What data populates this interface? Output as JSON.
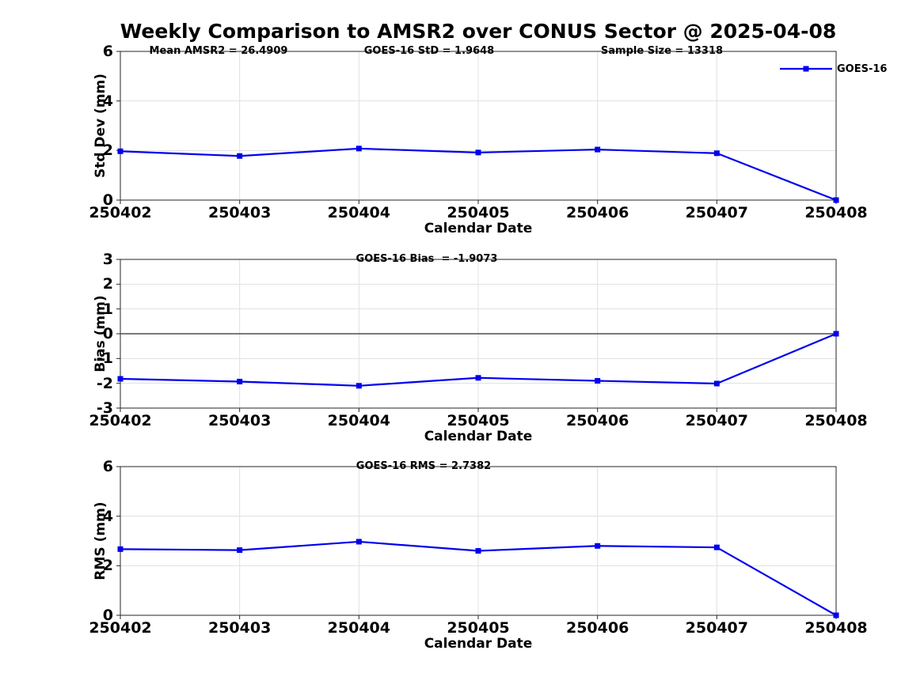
{
  "figure": {
    "title": "Weekly Comparison to AMSR2 over CONUS Sector @ 2025-04-08"
  },
  "legend": {
    "label": "GOES-16"
  },
  "colors": {
    "line": "#0000EE",
    "marker": "#0000EE",
    "axis": "#262626",
    "grid": "#E0E0E0",
    "zero_line": "#4D4D4D",
    "text": "#000000",
    "background": "#FFFFFF"
  },
  "chart_data": [
    {
      "type": "line",
      "name": "std-dev",
      "title": "",
      "categories": [
        "250402",
        "250403",
        "250404",
        "250405",
        "250406",
        "250407",
        "250408"
      ],
      "series": [
        {
          "name": "GOES-16",
          "values": [
            1.97,
            1.78,
            2.08,
            1.92,
            2.04,
            1.89,
            0.0
          ]
        }
      ],
      "ylabel": "Std Dev (mm)",
      "xlabel": "Calendar Date",
      "ylim": [
        0,
        6
      ],
      "yticks": [
        0,
        2,
        4,
        6
      ],
      "grid": true,
      "legend_position": "top-right",
      "annotations": [
        "Mean AMSR2 = 26.4909",
        "GOES-16 StD = 1.9648",
        "Sample Size = 13318"
      ]
    },
    {
      "type": "line",
      "name": "bias",
      "title": "",
      "categories": [
        "250402",
        "250403",
        "250404",
        "250405",
        "250406",
        "250407",
        "250408"
      ],
      "series": [
        {
          "name": "GOES-16",
          "values": [
            -1.82,
            -1.93,
            -2.1,
            -1.78,
            -1.9,
            -2.01,
            0.0
          ]
        }
      ],
      "ylabel": "Bias (mm)",
      "xlabel": "Calendar Date",
      "ylim": [
        -3,
        3
      ],
      "yticks": [
        -3,
        -2,
        -1,
        0,
        1,
        2,
        3
      ],
      "grid": true,
      "zero_line": 0,
      "annotations": [
        "GOES-16 Bias  = -1.9073"
      ]
    },
    {
      "type": "line",
      "name": "rms",
      "title": "",
      "categories": [
        "250402",
        "250403",
        "250404",
        "250405",
        "250406",
        "250407",
        "250408"
      ],
      "series": [
        {
          "name": "GOES-16",
          "values": [
            2.67,
            2.63,
            2.97,
            2.6,
            2.8,
            2.74,
            0.0
          ]
        }
      ],
      "ylabel": "RMS (mm)",
      "xlabel": "Calendar Date",
      "ylim": [
        0,
        6
      ],
      "yticks": [
        0,
        2,
        4,
        6
      ],
      "grid": true,
      "annotations": [
        "GOES-16 RMS = 2.7382"
      ]
    }
  ]
}
